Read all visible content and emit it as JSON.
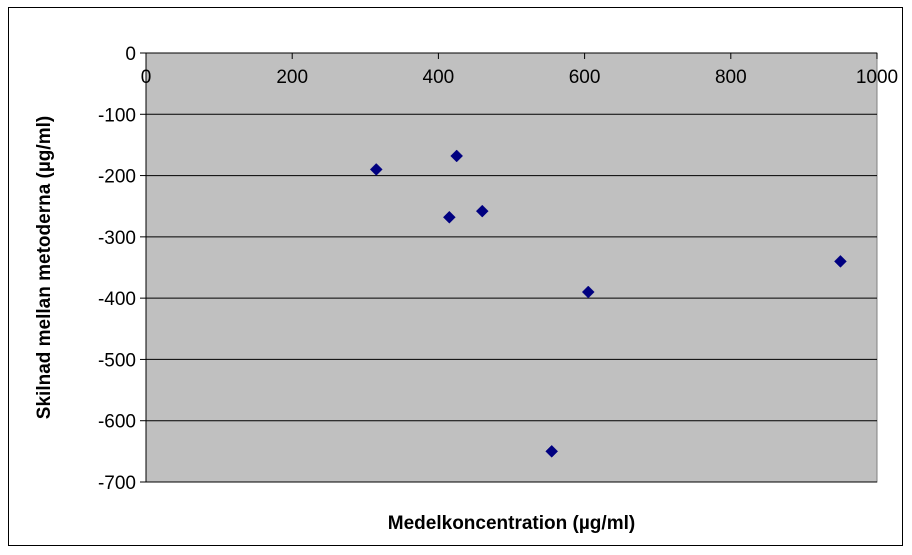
{
  "chart_data": {
    "type": "scatter",
    "title": "",
    "xlabel": "Medelkoncentration (µg/ml)",
    "ylabel": "Skilnad mellan metoderna (µg/ml)",
    "xlim": [
      0,
      1000
    ],
    "ylim": [
      -700,
      0
    ],
    "x_ticks": [
      0,
      200,
      400,
      600,
      800,
      1000
    ],
    "y_ticks": [
      0,
      -100,
      -200,
      -300,
      -400,
      -500,
      -600,
      -700
    ],
    "x_tick_labels": [
      "0",
      "200",
      "400",
      "600",
      "800",
      "1000"
    ],
    "y_tick_labels": [
      "0",
      "-100",
      "-200",
      "-300",
      "-400",
      "-500",
      "-600",
      "-700"
    ],
    "grid": "horizontal",
    "legend": "none",
    "plot_background": "#c0c0c0",
    "marker_color": "#000080",
    "marker": "diamond",
    "series": [
      {
        "points": [
          {
            "x": 315,
            "y": -190
          },
          {
            "x": 415,
            "y": -268
          },
          {
            "x": 425,
            "y": -168
          },
          {
            "x": 460,
            "y": -258
          },
          {
            "x": 555,
            "y": -650
          },
          {
            "x": 605,
            "y": -390
          },
          {
            "x": 950,
            "y": -340
          }
        ]
      }
    ]
  }
}
